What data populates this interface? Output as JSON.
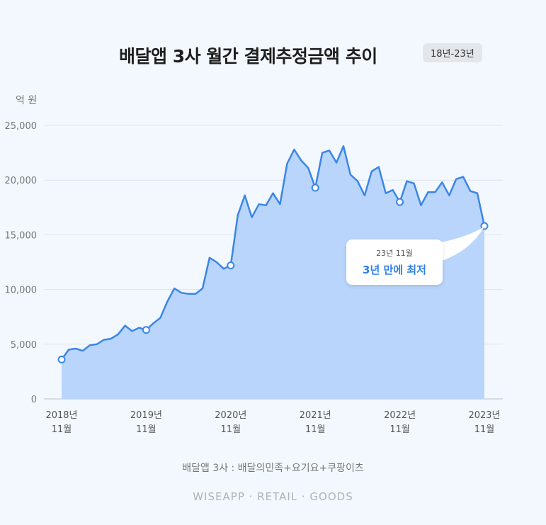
{
  "title": "배달앱 3사 월간 결제추정금액 추이",
  "badge": "18년-23년",
  "unit": "억 원",
  "note": "배달앱 3사 : 배달의민족+요기요+쿠팡이츠",
  "brand": "WISEAPP · RETAIL · GOODS",
  "callout": {
    "date": "23년 11월",
    "text": "3년 만에 최저"
  },
  "colors": {
    "line": "#3a86e6",
    "area": "#b9d5fb",
    "marker_fill": "#ffffff",
    "grid": "#dde3ea",
    "text": "#555555"
  },
  "chart_data": {
    "type": "area",
    "title": "배달앱 3사 월간 결제추정금액 추이",
    "ylabel": "억 원",
    "ylim": [
      0,
      25000
    ],
    "yticks": [
      0,
      5000,
      10000,
      15000,
      20000,
      25000
    ],
    "ytick_labels": [
      "0",
      "5,000",
      "10,000",
      "15,000",
      "20,000",
      "25,000"
    ],
    "xtick_labels": [
      {
        "year": "2018년",
        "month": "11월"
      },
      {
        "year": "2019년",
        "month": "11월"
      },
      {
        "year": "2020년",
        "month": "11월"
      },
      {
        "year": "2021년",
        "month": "11월"
      },
      {
        "year": "2022년",
        "month": "11월"
      },
      {
        "year": "2023년",
        "month": "11월"
      }
    ],
    "x": [
      "2018-11",
      "2018-12",
      "2019-01",
      "2019-02",
      "2019-03",
      "2019-04",
      "2019-05",
      "2019-06",
      "2019-07",
      "2019-08",
      "2019-09",
      "2019-10",
      "2019-11",
      "2019-12",
      "2020-01",
      "2020-02",
      "2020-03",
      "2020-04",
      "2020-05",
      "2020-06",
      "2020-07",
      "2020-08",
      "2020-09",
      "2020-10",
      "2020-11",
      "2020-12",
      "2021-01",
      "2021-02",
      "2021-03",
      "2021-04",
      "2021-05",
      "2021-06",
      "2021-07",
      "2021-08",
      "2021-09",
      "2021-10",
      "2021-11",
      "2021-12",
      "2022-01",
      "2022-02",
      "2022-03",
      "2022-04",
      "2022-05",
      "2022-06",
      "2022-07",
      "2022-08",
      "2022-09",
      "2022-10",
      "2022-11",
      "2022-12",
      "2023-01",
      "2023-02",
      "2023-03",
      "2023-04",
      "2023-05",
      "2023-06",
      "2023-07",
      "2023-08",
      "2023-09",
      "2023-10",
      "2023-11"
    ],
    "series": [
      {
        "values": [
          3600,
          4500,
          4600,
          4400,
          4900,
          5000,
          5400,
          5500,
          5900,
          6700,
          6200,
          6500,
          6300,
          6900,
          7400,
          8900,
          10100,
          9700,
          9600,
          9600,
          10100,
          12900,
          12500,
          11900,
          12200,
          16800,
          18600,
          16600,
          17800,
          17700,
          18800,
          17800,
          21500,
          22800,
          21800,
          21100,
          19300,
          22500,
          22700,
          21600,
          23100,
          20500,
          19900,
          18600,
          20800,
          21200,
          18800,
          19100,
          18000,
          19900,
          19700,
          17700,
          18900,
          18900,
          19800,
          18600,
          20100,
          20300,
          19000,
          18800,
          15800
        ]
      }
    ],
    "highlighted_points": [
      "2018-11",
      "2019-11",
      "2020-11",
      "2021-11",
      "2022-11",
      "2023-11"
    ],
    "grid": true
  }
}
